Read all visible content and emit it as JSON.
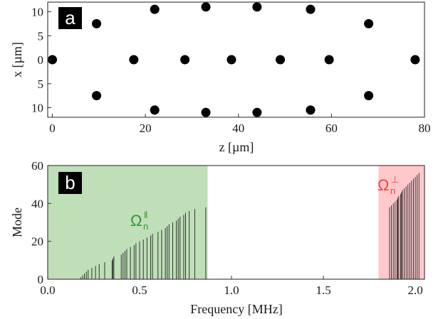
{
  "chart_data": [
    {
      "type": "scatter",
      "panel_label": "a",
      "xlabel": "z [µm]",
      "ylabel": "x [µm]",
      "xlim": [
        -1,
        80
      ],
      "ylim": [
        -12,
        12
      ],
      "xticks": [
        0,
        20,
        40,
        60,
        80
      ],
      "yticks": [
        {
          "value": 10,
          "label": "10"
        },
        {
          "value": 5,
          "label": "5"
        },
        {
          "value": 0,
          "label": "0"
        },
        {
          "value": -5,
          "label": "5"
        },
        {
          "value": -10,
          "label": "10"
        }
      ],
      "points": [
        {
          "x": 0,
          "y": 0
        },
        {
          "x": 9.5,
          "y": 7.5
        },
        {
          "x": 9.5,
          "y": -7.5
        },
        {
          "x": 17.5,
          "y": 0
        },
        {
          "x": 22,
          "y": 10.5
        },
        {
          "x": 22,
          "y": -10.5
        },
        {
          "x": 28.5,
          "y": 0
        },
        {
          "x": 33,
          "y": 11
        },
        {
          "x": 33,
          "y": -11
        },
        {
          "x": 38.5,
          "y": 0
        },
        {
          "x": 44,
          "y": 11
        },
        {
          "x": 44,
          "y": -11
        },
        {
          "x": 49,
          "y": 0
        },
        {
          "x": 55.5,
          "y": 10.5
        },
        {
          "x": 55.5,
          "y": -10.5
        },
        {
          "x": 59.5,
          "y": 0
        },
        {
          "x": 68,
          "y": 7.5
        },
        {
          "x": 68,
          "y": -7.5
        },
        {
          "x": 78,
          "y": 0
        }
      ]
    },
    {
      "type": "bar",
      "panel_label": "b",
      "xlabel": "Frequency [MHz]",
      "ylabel": "Mode",
      "xlim": [
        0,
        2.05
      ],
      "ylim": [
        0,
        60
      ],
      "xticks": [
        "0.0",
        "0.5",
        "1.0",
        "1.5",
        "2.0"
      ],
      "yticks": [
        0,
        20,
        40,
        60
      ],
      "regions": [
        {
          "label": "Ω",
          "sub": "n",
          "sup": "‖",
          "from": 0,
          "to": 0.87,
          "color": "#bfdfb8",
          "text_color": "#2e9a2e"
        },
        {
          "label": "Ω",
          "sub": "n",
          "sup": "⊥",
          "from": 1.8,
          "to": 2.05,
          "color": "#ffc9cc",
          "text_color": "#ff3b3b"
        }
      ],
      "parallel_modes": [
        {
          "f": 0.18,
          "n": 1
        },
        {
          "f": 0.19,
          "n": 2
        },
        {
          "f": 0.2,
          "n": 3
        },
        {
          "f": 0.21,
          "n": 4
        },
        {
          "f": 0.22,
          "n": 5
        },
        {
          "f": 0.24,
          "n": 6
        },
        {
          "f": 0.26,
          "n": 7
        },
        {
          "f": 0.28,
          "n": 8
        },
        {
          "f": 0.31,
          "n": 9
        },
        {
          "f": 0.35,
          "n": 10
        },
        {
          "f": 0.355,
          "n": 11
        },
        {
          "f": 0.36,
          "n": 12
        },
        {
          "f": 0.4,
          "n": 13
        },
        {
          "f": 0.41,
          "n": 14
        },
        {
          "f": 0.42,
          "n": 15
        },
        {
          "f": 0.43,
          "n": 16
        },
        {
          "f": 0.45,
          "n": 17
        },
        {
          "f": 0.47,
          "n": 18
        },
        {
          "f": 0.48,
          "n": 19
        },
        {
          "f": 0.5,
          "n": 20
        },
        {
          "f": 0.52,
          "n": 21
        },
        {
          "f": 0.54,
          "n": 22
        },
        {
          "f": 0.56,
          "n": 23
        },
        {
          "f": 0.57,
          "n": 24
        },
        {
          "f": 0.6,
          "n": 25
        },
        {
          "f": 0.62,
          "n": 26
        },
        {
          "f": 0.64,
          "n": 27
        },
        {
          "f": 0.65,
          "n": 28
        },
        {
          "f": 0.66,
          "n": 29
        },
        {
          "f": 0.68,
          "n": 30
        },
        {
          "f": 0.7,
          "n": 31
        },
        {
          "f": 0.71,
          "n": 32
        },
        {
          "f": 0.72,
          "n": 33
        },
        {
          "f": 0.74,
          "n": 34
        },
        {
          "f": 0.75,
          "n": 35
        },
        {
          "f": 0.77,
          "n": 36
        },
        {
          "f": 0.8,
          "n": 37
        },
        {
          "f": 0.86,
          "n": 38
        }
      ],
      "perp_modes": [
        {
          "f": 1.86,
          "n": 38
        },
        {
          "f": 1.87,
          "n": 39
        },
        {
          "f": 1.88,
          "n": 40
        },
        {
          "f": 1.89,
          "n": 41
        },
        {
          "f": 1.9,
          "n": 42
        },
        {
          "f": 1.905,
          "n": 43
        },
        {
          "f": 1.91,
          "n": 44
        },
        {
          "f": 1.92,
          "n": 45
        },
        {
          "f": 1.925,
          "n": 46
        },
        {
          "f": 1.93,
          "n": 47
        },
        {
          "f": 1.94,
          "n": 48
        },
        {
          "f": 1.95,
          "n": 49
        },
        {
          "f": 1.96,
          "n": 50
        },
        {
          "f": 1.97,
          "n": 51
        },
        {
          "f": 1.98,
          "n": 52
        },
        {
          "f": 1.99,
          "n": 53
        },
        {
          "f": 2.0,
          "n": 54
        },
        {
          "f": 2.01,
          "n": 55
        },
        {
          "f": 2.02,
          "n": 56
        }
      ]
    }
  ]
}
